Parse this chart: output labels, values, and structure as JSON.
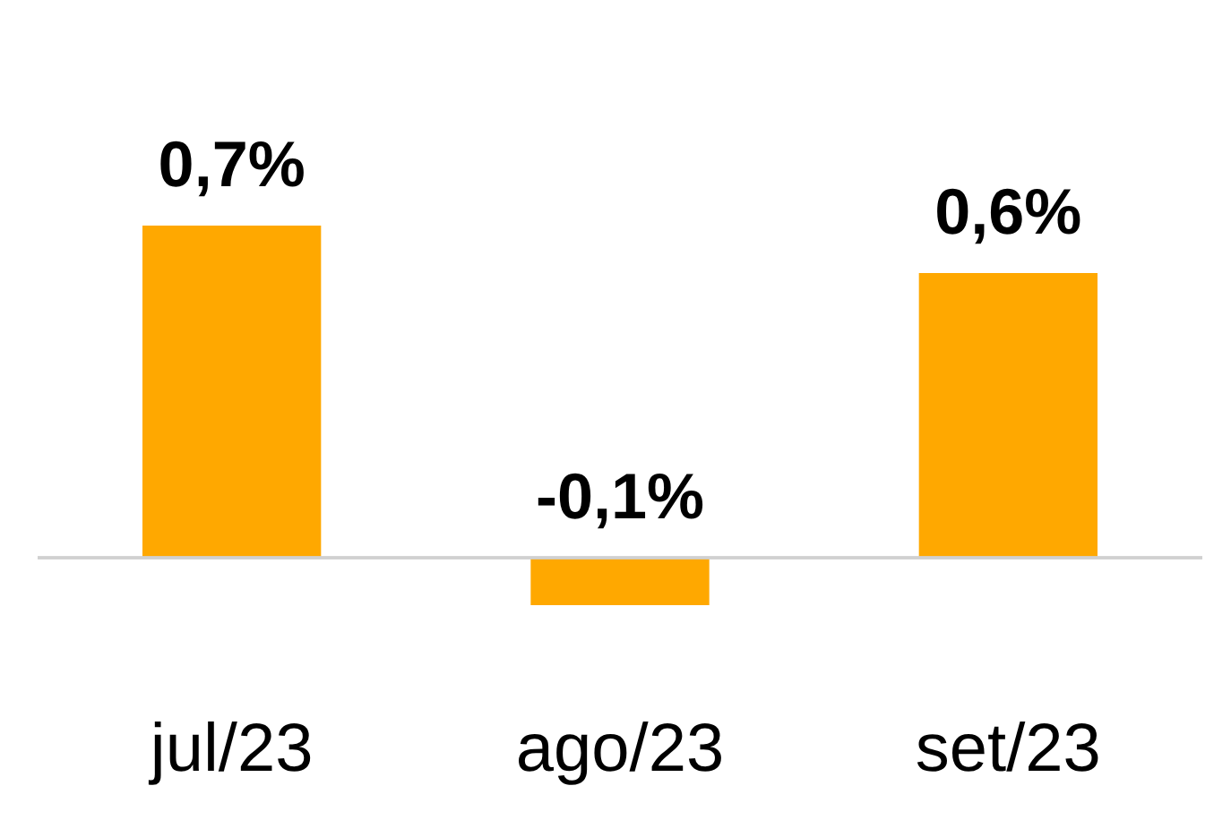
{
  "chart_data": {
    "type": "bar",
    "categories": [
      "jul/23",
      "ago/23",
      "set/23"
    ],
    "values": [
      0.7,
      -0.1,
      0.6
    ],
    "color": "#ffa800",
    "value_labels": [
      "0,7%",
      "-0,1%",
      "0,6%"
    ],
    "grid": false
  }
}
